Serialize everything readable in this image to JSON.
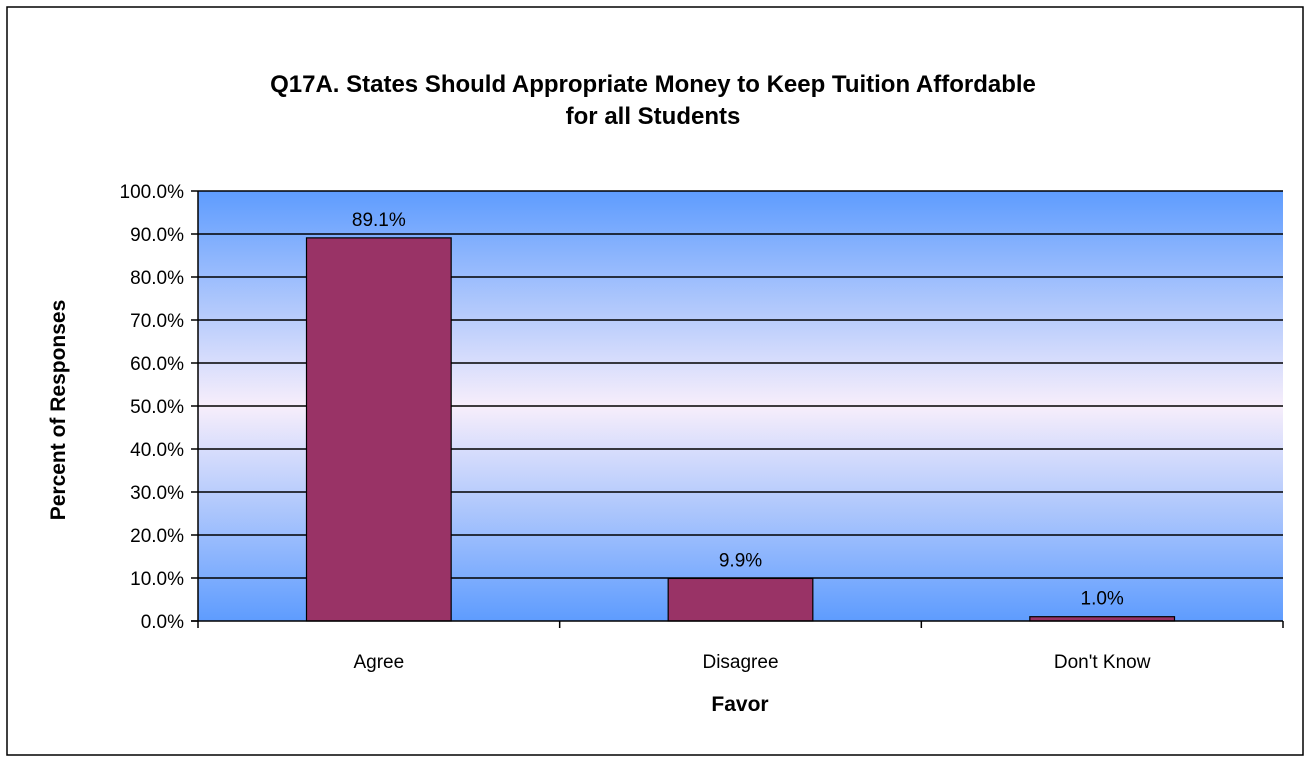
{
  "chart_data": {
    "type": "bar",
    "title_line1": "Q17A. States Should Appropriate Money to Keep Tuition Affordable",
    "title_line2": "for all Students",
    "xlabel": "Favor",
    "ylabel": "Percent of Responses",
    "categories": [
      "Agree",
      "Disagree",
      "Don't Know"
    ],
    "values": [
      89.1,
      9.9,
      1.0
    ],
    "value_labels": [
      "89.1%",
      "9.9%",
      "1.0%"
    ],
    "ylim": [
      0,
      100
    ],
    "yticks": [
      0,
      10,
      20,
      30,
      40,
      50,
      60,
      70,
      80,
      90,
      100
    ],
    "ytick_labels": [
      "0.0%",
      "10.0%",
      "20.0%",
      "30.0%",
      "40.0%",
      "50.0%",
      "60.0%",
      "70.0%",
      "80.0%",
      "90.0%",
      "100.0%"
    ],
    "grid": true,
    "legend": "none",
    "colors": {
      "bar": "#993366",
      "plot_gradient_edge": "#5e9cfe",
      "plot_gradient_mid": "#f7eefb",
      "gridline": "#000000"
    }
  }
}
